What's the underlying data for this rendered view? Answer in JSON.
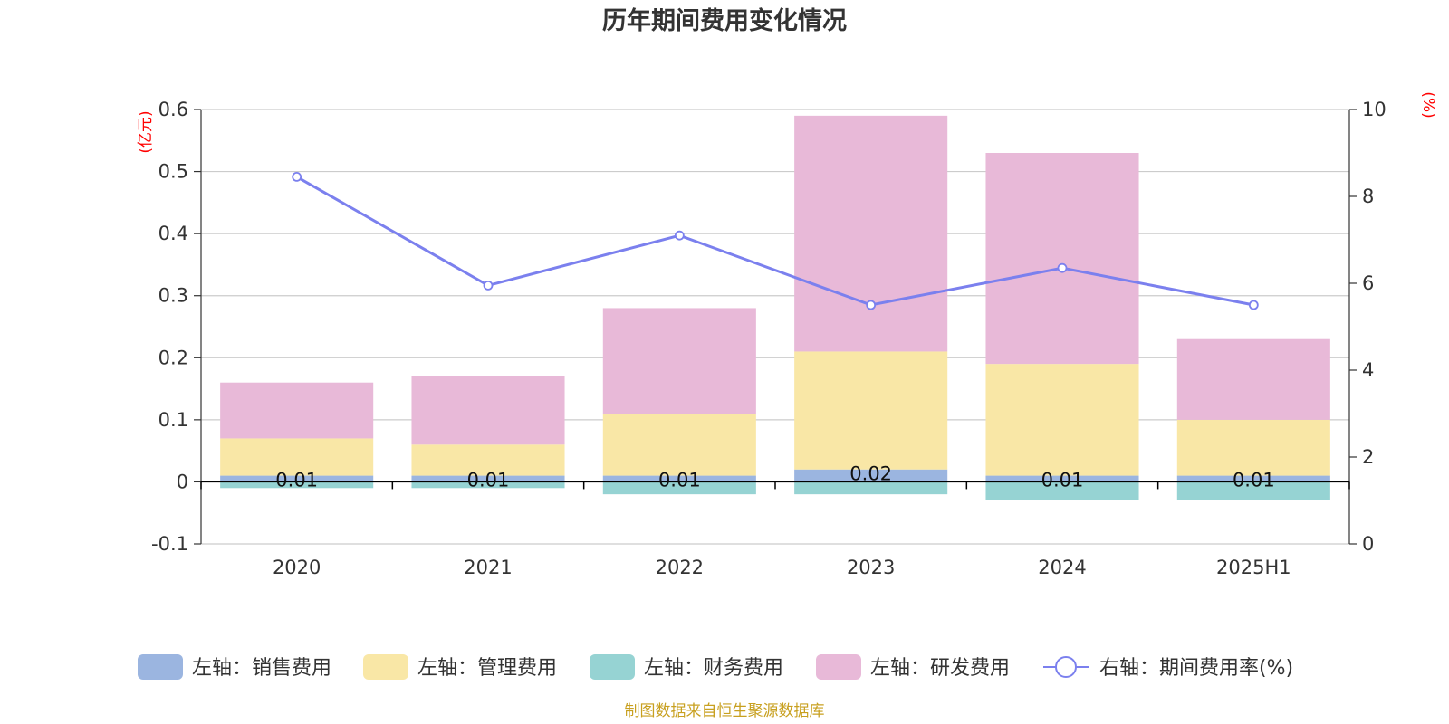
{
  "colors": {
    "sales": "#9bb5e0",
    "admin": "#f9e7a6",
    "finance": "#96d3d3",
    "rd": "#e8b9d8",
    "rate_line": "#7b80ee",
    "grid": "#cccccc",
    "axis": "#333333",
    "unit": "#ff0000",
    "source": "#c8a020"
  },
  "chart_data": {
    "type": "bar",
    "title": "历年期间费用变化情况",
    "left_unit": "(亿元)",
    "right_unit": "(%)",
    "categories": [
      "2020",
      "2021",
      "2022",
      "2023",
      "2024",
      "2025H1"
    ],
    "left_axis": {
      "min": -0.1,
      "max": 0.6,
      "ticks": [
        -0.1,
        0,
        0.1,
        0.2,
        0.3,
        0.4,
        0.5,
        0.6
      ],
      "tick_labels": [
        "-0.1",
        "0",
        "0.1",
        "0.2",
        "0.3",
        "0.4",
        "0.5",
        "0.6"
      ]
    },
    "right_axis": {
      "min": 0,
      "max": 10,
      "ticks": [
        0,
        2,
        4,
        6,
        8,
        10
      ],
      "tick_labels": [
        "0",
        "2",
        "4",
        "6",
        "8",
        "10"
      ]
    },
    "series": [
      {
        "name": "左轴：销售费用",
        "key": "sales",
        "kind": "bar",
        "values": [
          0.01,
          0.01,
          0.01,
          0.02,
          0.01,
          0.01
        ],
        "labels": [
          "0.01",
          "0.01",
          "0.01",
          "0.02",
          "0.01",
          "0.01"
        ]
      },
      {
        "name": "左轴：管理费用",
        "key": "admin",
        "kind": "bar",
        "values": [
          0.06,
          0.05,
          0.1,
          0.19,
          0.18,
          0.09
        ]
      },
      {
        "name": "左轴：财务费用",
        "key": "finance",
        "kind": "bar",
        "values": [
          -0.01,
          -0.01,
          -0.02,
          -0.02,
          -0.03,
          -0.03
        ]
      },
      {
        "name": "左轴：研发费用",
        "key": "rd",
        "kind": "bar",
        "values": [
          0.09,
          0.11,
          0.17,
          0.38,
          0.34,
          0.13
        ]
      },
      {
        "name": "右轴：期间费用率(%)",
        "key": "rate_line",
        "kind": "line",
        "values": [
          8.45,
          5.95,
          7.1,
          5.5,
          6.35,
          5.5
        ]
      }
    ],
    "grid": true,
    "legend_position": "bottom"
  },
  "source_text": "制图数据来自恒生聚源数据库"
}
